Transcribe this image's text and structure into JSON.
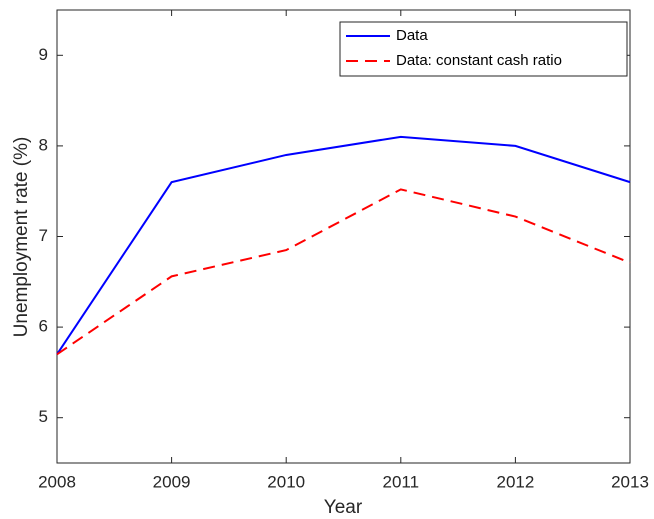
{
  "chart_data": {
    "type": "line",
    "xlabel": "Year",
    "ylabel": "Unemployment rate (%)",
    "x": [
      2008,
      2009,
      2010,
      2011,
      2012,
      2013
    ],
    "series": [
      {
        "name": "Data",
        "color": "#0000ff",
        "style": "solid",
        "values": [
          5.7,
          7.6,
          7.9,
          8.1,
          8.0,
          7.6
        ]
      },
      {
        "name": "Data: constant cash ratio",
        "color": "#ff0000",
        "style": "dashed",
        "values": [
          5.7,
          6.56,
          6.85,
          7.52,
          7.22,
          6.71
        ]
      }
    ],
    "xlim": [
      2008,
      2013
    ],
    "xticks": [
      2008,
      2009,
      2010,
      2011,
      2012,
      2013
    ],
    "ylim": [
      4.5,
      9.5
    ],
    "yticks": [
      5,
      6,
      7,
      8,
      9
    ],
    "grid": false,
    "legend": "upper right"
  }
}
